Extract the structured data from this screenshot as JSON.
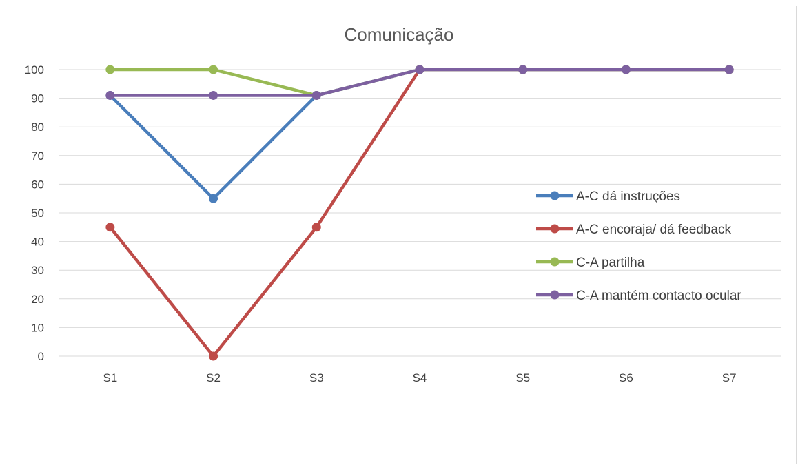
{
  "chart_data": {
    "type": "line",
    "title": "Comunicação",
    "xlabel": "",
    "ylabel": "",
    "categories": [
      "S1",
      "S2",
      "S3",
      "S4",
      "S5",
      "S6",
      "S7"
    ],
    "ylim": [
      0,
      100
    ],
    "yticks": [
      0,
      10,
      20,
      30,
      40,
      50,
      60,
      70,
      80,
      90,
      100
    ],
    "grid": true,
    "legend_position": "right",
    "series": [
      {
        "name": "A-C dá instruções",
        "color": "#4a7ebb",
        "values": [
          91,
          55,
          91,
          100,
          100,
          100,
          100
        ]
      },
      {
        "name": "A-C encoraja/ dá feedback",
        "color": "#be4b48",
        "values": [
          45,
          0,
          45,
          100,
          100,
          100,
          100
        ]
      },
      {
        "name": "C-A partilha",
        "color": "#98b954",
        "values": [
          100,
          100,
          91,
          100,
          100,
          100,
          100
        ]
      },
      {
        "name": "C-A mantém contacto ocular",
        "color": "#7d60a0",
        "values": [
          91,
          91,
          91,
          100,
          100,
          100,
          100
        ]
      }
    ]
  }
}
